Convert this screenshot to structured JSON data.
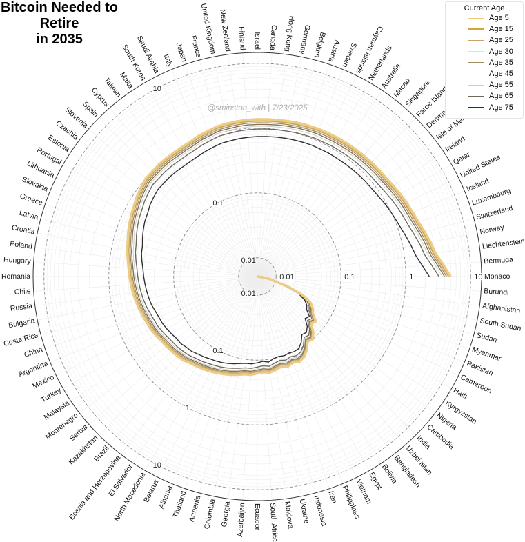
{
  "title": {
    "line1": "Bitcoin Needed to Retire",
    "line2": "in 2035"
  },
  "watermark": "@sminston_with  |  7/23/2025",
  "legend": {
    "title": "Current Age",
    "placement": "top-right",
    "items": [
      {
        "label": "Age 5",
        "color": "#eccb84"
      },
      {
        "label": "Age 15",
        "color": "#d6a43a"
      },
      {
        "label": "Age 25",
        "color": "#c9a45e"
      },
      {
        "label": "Age 30",
        "color": "#e6dfd0"
      },
      {
        "label": "Age 35",
        "color": "#a18d62"
      },
      {
        "label": "Age 45",
        "color": "#87724e"
      },
      {
        "label": "Age 55",
        "color": "#cfcfcf"
      },
      {
        "label": "Age 65",
        "color": "#6f675a"
      },
      {
        "label": "Age 75",
        "color": "#2e2e2e"
      }
    ]
  },
  "chart_data": {
    "type": "line",
    "coordinate_system": "polar",
    "title": "Bitcoin Needed to Retire in 2035",
    "radial_scale": "log",
    "radial_ticks": [
      0.01,
      0.1,
      1,
      10
    ],
    "radial_tick_labels": [
      "0.01",
      "0.1",
      "1",
      "10"
    ],
    "grid": true,
    "categories": [
      "Burundi",
      "Afghanistan",
      "South Sudan",
      "Sudan",
      "Myanmar",
      "Pakistan",
      "Cameroon",
      "Haiti",
      "Kyrgyzstan",
      "Nigeria",
      "Cambodia",
      "India",
      "Uzbekistan",
      "Bangladesh",
      "Bolivia",
      "Egypt",
      "Vietnam",
      "Philippines",
      "Iran",
      "Indonesia",
      "Ukraine",
      "Moldova",
      "South Africa",
      "Ecuador",
      "Azerbaijan",
      "Georgia",
      "Colombia",
      "Armenia",
      "Thailand",
      "Albania",
      "Belarus",
      "North Macedonia",
      "El Salvador",
      "Bosnia and Herzegovina",
      "Brazil",
      "Kazakhstan",
      "Serbia",
      "Montenegro",
      "Malaysia",
      "Turkey",
      "Mexico",
      "Argentina",
      "China",
      "Costa Rica",
      "Bulgaria",
      "Russia",
      "Chile",
      "Romania",
      "Hungary",
      "Poland",
      "Croatia",
      "Latvia",
      "Greece",
      "Slovakia",
      "Lithuania",
      "Portugal",
      "Estonia",
      "Czechia",
      "Slovenia",
      "Spain",
      "Cyprus",
      "Taiwan",
      "Malta",
      "South Korea",
      "Saudi Arabia",
      "Italy",
      "Japan",
      "France",
      "United Kingdom",
      "New Zealand",
      "Finland",
      "Israel",
      "Canada",
      "Hong Kong",
      "Germany",
      "Belgium",
      "Austria",
      "Sweden",
      "Cayman Islands",
      "Netherlands",
      "Australia",
      "Macao",
      "Singapore",
      "Faroe Islands",
      "Denmark",
      "Isle of Man",
      "Ireland",
      "Qatar",
      "United States",
      "Iceland",
      "Luxembourg",
      "Switzerland",
      "Norway",
      "Liechtenstein",
      "Bermuda",
      "Monaco"
    ],
    "series": [
      {
        "name": "Age 5",
        "values": [
          0.005,
          0.006,
          0.008,
          0.01,
          0.017,
          0.03,
          0.042,
          0.05,
          0.055,
          0.07,
          0.065,
          0.085,
          0.1,
          0.095,
          0.12,
          0.14,
          0.15,
          0.14,
          0.15,
          0.14,
          0.15,
          0.16,
          0.155,
          0.16,
          0.17,
          0.17,
          0.18,
          0.19,
          0.2,
          0.21,
          0.22,
          0.23,
          0.24,
          0.25,
          0.27,
          0.28,
          0.29,
          0.3,
          0.31,
          0.33,
          0.35,
          0.36,
          0.38,
          0.4,
          0.42,
          0.44,
          0.46,
          0.48,
          0.5,
          0.53,
          0.57,
          0.6,
          0.65,
          0.7,
          0.75,
          0.8,
          0.87,
          0.93,
          1.0,
          1.0,
          1.02,
          1.03,
          1.03,
          1.05,
          1.08,
          1.15,
          1.2,
          1.28,
          1.3,
          1.33,
          1.35,
          1.37,
          1.38,
          1.4,
          1.42,
          1.45,
          1.47,
          1.5,
          1.5,
          1.52,
          1.53,
          1.55,
          1.56,
          1.58,
          1.6,
          1.62,
          1.7,
          1.8,
          1.9,
          2.0,
          2.15,
          2.4,
          2.7,
          3.0,
          3.8,
          4.9
        ]
      },
      {
        "name": "Age 15",
        "values": [
          0.005,
          0.006,
          0.008,
          0.01,
          0.017,
          0.0298,
          0.0416,
          0.0495,
          0.0544,
          0.0692,
          0.0642,
          0.0839,
          0.0986,
          0.0937,
          0.118,
          0.138,
          0.148,
          0.138,
          0.148,
          0.138,
          0.148,
          0.158,
          0.153,
          0.158,
          0.167,
          0.167,
          0.177,
          0.187,
          0.197,
          0.206,
          0.216,
          0.226,
          0.236,
          0.246,
          0.265,
          0.275,
          0.285,
          0.295,
          0.305,
          0.324,
          0.344,
          0.353,
          0.373,
          0.393,
          0.412,
          0.432,
          0.451,
          0.471,
          0.49,
          0.52,
          0.559,
          0.588,
          0.637,
          0.686,
          0.735,
          0.783,
          0.852,
          0.91,
          0.978,
          0.978,
          0.998,
          1.01,
          1.01,
          1.03,
          1.06,
          1.12,
          1.17,
          1.25,
          1.27,
          1.3,
          1.32,
          1.34,
          1.35,
          1.37,
          1.39,
          1.42,
          1.44,
          1.47,
          1.47,
          1.48,
          1.49,
          1.51,
          1.52,
          1.54,
          1.56,
          1.58,
          1.66,
          1.76,
          1.85,
          1.95,
          2.1,
          2.34,
          2.63,
          2.93,
          3.7,
          4.77
        ]
      },
      {
        "name": "Age 25",
        "values": [
          0.005,
          0.006,
          0.008,
          0.0099,
          0.0168,
          0.0294,
          0.0409,
          0.0487,
          0.0534,
          0.068,
          0.0631,
          0.0824,
          0.0966,
          0.0919,
          0.116,
          0.135,
          0.144,
          0.135,
          0.144,
          0.135,
          0.144,
          0.154,
          0.149,
          0.154,
          0.163,
          0.163,
          0.173,
          0.182,
          0.192,
          0.202,
          0.211,
          0.22,
          0.23,
          0.24,
          0.259,
          0.268,
          0.278,
          0.287,
          0.297,
          0.316,
          0.334,
          0.344,
          0.363,
          0.382,
          0.401,
          0.42,
          0.438,
          0.457,
          0.476,
          0.505,
          0.542,
          0.57,
          0.618,
          0.665,
          0.713,
          0.759,
          0.826,
          0.882,
          0.947,
          0.947,
          0.966,
          0.975,
          0.975,
          0.994,
          1.02,
          1.09,
          1.14,
          1.21,
          1.23,
          1.26,
          1.28,
          1.29,
          1.3,
          1.32,
          1.34,
          1.37,
          1.39,
          1.42,
          1.42,
          1.43,
          1.44,
          1.46,
          1.47,
          1.49,
          1.51,
          1.53,
          1.6,
          1.7,
          1.79,
          1.88,
          2.03,
          2.26,
          2.54,
          2.82,
          3.56,
          4.59
        ]
      },
      {
        "name": "Age 30",
        "values": [
          0.005,
          0.006,
          0.008,
          0.0099,
          0.0166,
          0.0291,
          0.0404,
          0.048,
          0.0527,
          0.0669,
          0.0621,
          0.081,
          0.095,
          0.0903,
          0.114,
          0.132,
          0.141,
          0.132,
          0.141,
          0.132,
          0.141,
          0.151,
          0.146,
          0.151,
          0.16,
          0.16,
          0.169,
          0.179,
          0.188,
          0.197,
          0.207,
          0.216,
          0.225,
          0.235,
          0.253,
          0.262,
          0.272,
          0.28,
          0.29,
          0.308,
          0.327,
          0.336,
          0.354,
          0.373,
          0.391,
          0.409,
          0.428,
          0.446,
          0.464,
          0.492,
          0.529,
          0.555,
          0.601,
          0.648,
          0.694,
          0.739,
          0.803,
          0.858,
          0.921,
          0.921,
          0.939,
          0.947,
          0.947,
          0.965,
          0.994,
          1.06,
          1.1,
          1.17,
          1.19,
          1.22,
          1.24,
          1.26,
          1.27,
          1.28,
          1.3,
          1.33,
          1.35,
          1.37,
          1.37,
          1.39,
          1.4,
          1.42,
          1.43,
          1.45,
          1.47,
          1.48,
          1.55,
          1.65,
          1.74,
          1.83,
          1.96,
          2.19,
          2.46,
          2.73,
          3.44,
          4.43
        ]
      },
      {
        "name": "Age 35",
        "values": [
          0.005,
          0.006,
          0.008,
          0.0098,
          0.0165,
          0.0288,
          0.0398,
          0.0473,
          0.0518,
          0.0658,
          0.061,
          0.0795,
          0.093,
          0.0885,
          0.111,
          0.13,
          0.138,
          0.129,
          0.138,
          0.129,
          0.138,
          0.148,
          0.143,
          0.148,
          0.156,
          0.156,
          0.165,
          0.174,
          0.184,
          0.193,
          0.201,
          0.21,
          0.22,
          0.229,
          0.247,
          0.255,
          0.265,
          0.273,
          0.283,
          0.3,
          0.318,
          0.326,
          0.344,
          0.363,
          0.38,
          0.398,
          0.415,
          0.433,
          0.45,
          0.478,
          0.513,
          0.538,
          0.583,
          0.628,
          0.673,
          0.715,
          0.778,
          0.83,
          0.89,
          0.89,
          0.908,
          0.915,
          0.915,
          0.933,
          0.96,
          1.02,
          1.07,
          1.13,
          1.15,
          1.18,
          1.2,
          1.21,
          1.22,
          1.24,
          1.26,
          1.28,
          1.3,
          1.33,
          1.33,
          1.34,
          1.35,
          1.37,
          1.38,
          1.4,
          1.41,
          1.43,
          1.5,
          1.59,
          1.67,
          1.76,
          1.89,
          2.11,
          2.36,
          2.63,
          3.31,
          4.25
        ]
      },
      {
        "name": "Age 45",
        "values": [
          0.005,
          0.006,
          0.008,
          0.0097,
          0.0163,
          0.0282,
          0.0388,
          0.046,
          0.0503,
          0.0639,
          0.0592,
          0.0771,
          0.0899,
          0.0856,
          0.107,
          0.125,
          0.132,
          0.125,
          0.132,
          0.125,
          0.132,
          0.142,
          0.137,
          0.142,
          0.15,
          0.15,
          0.158,
          0.167,
          0.176,
          0.185,
          0.193,
          0.201,
          0.21,
          0.219,
          0.236,
          0.244,
          0.254,
          0.26,
          0.27,
          0.287,
          0.303,
          0.311,
          0.328,
          0.346,
          0.362,
          0.379,
          0.395,
          0.412,
          0.428,
          0.454,
          0.487,
          0.51,
          0.553,
          0.596,
          0.638,
          0.678,
          0.737,
          0.786,
          0.842,
          0.842,
          0.858,
          0.864,
          0.864,
          0.881,
          0.907,
          0.963,
          1.01,
          1.07,
          1.08,
          1.11,
          1.13,
          1.14,
          1.15,
          1.17,
          1.19,
          1.21,
          1.23,
          1.25,
          1.25,
          1.26,
          1.27,
          1.29,
          1.3,
          1.31,
          1.33,
          1.35,
          1.41,
          1.49,
          1.57,
          1.65,
          1.78,
          1.98,
          2.21,
          2.46,
          3.09,
          3.96
        ]
      },
      {
        "name": "Age 55",
        "values": [
          0.005,
          0.006,
          0.0078,
          0.0097,
          0.016,
          0.0276,
          0.0377,
          0.0447,
          0.0488,
          0.0618,
          0.0573,
          0.0744,
          0.0866,
          0.0825,
          0.103,
          0.12,
          0.126,
          0.119,
          0.126,
          0.119,
          0.126,
          0.136,
          0.131,
          0.136,
          0.144,
          0.144,
          0.151,
          0.16,
          0.168,
          0.176,
          0.184,
          0.192,
          0.201,
          0.209,
          0.225,
          0.232,
          0.242,
          0.247,
          0.257,
          0.272,
          0.288,
          0.295,
          0.31,
          0.328,
          0.343,
          0.358,
          0.374,
          0.389,
          0.404,
          0.429,
          0.46,
          0.48,
          0.52,
          0.561,
          0.601,
          0.637,
          0.692,
          0.738,
          0.789,
          0.789,
          0.804,
          0.809,
          0.809,
          0.824,
          0.85,
          0.9,
          0.941,
          1.0,
          1.01,
          1.04,
          1.05,
          1.07,
          1.08,
          1.09,
          1.11,
          1.13,
          1.14,
          1.16,
          1.16,
          1.18,
          1.18,
          1.2,
          1.21,
          1.22,
          1.24,
          1.26,
          1.31,
          1.39,
          1.46,
          1.54,
          1.65,
          1.83,
          2.05,
          2.28,
          2.85,
          3.65
        ]
      },
      {
        "name": "Age 65",
        "values": [
          0.005,
          0.006,
          0.0077,
          0.0096,
          0.0157,
          0.0268,
          0.0362,
          0.043,
          0.0467,
          0.0591,
          0.0548,
          0.0709,
          0.0821,
          0.0784,
          0.0976,
          0.113,
          0.118,
          0.112,
          0.118,
          0.112,
          0.118,
          0.128,
          0.123,
          0.128,
          0.135,
          0.135,
          0.142,
          0.15,
          0.158,
          0.165,
          0.172,
          0.179,
          0.188,
          0.196,
          0.21,
          0.216,
          0.226,
          0.23,
          0.24,
          0.253,
          0.267,
          0.274,
          0.287,
          0.304,
          0.318,
          0.331,
          0.345,
          0.358,
          0.372,
          0.396,
          0.423,
          0.44,
          0.477,
          0.514,
          0.552,
          0.582,
          0.633,
          0.674,
          0.718,
          0.718,
          0.732,
          0.736,
          0.736,
          0.749,
          0.773,
          0.817,
          0.854,
          0.902,
          0.916,
          0.94,
          0.953,
          0.967,
          0.977,
          0.99,
          1.0,
          1.02,
          1.03,
          1.05,
          1.05,
          1.07,
          1.07,
          1.08,
          1.09,
          1.11,
          1.12,
          1.13,
          1.18,
          1.25,
          1.32,
          1.39,
          1.48,
          1.64,
          1.84,
          2.04,
          2.53,
          3.24
        ]
      },
      {
        "name": "Age 75",
        "values": [
          0.005,
          0.0059,
          0.0076,
          0.0093,
          0.015,
          0.025,
          0.033,
          0.039,
          0.042,
          0.053,
          0.049,
          0.063,
          0.072,
          0.069,
          0.085,
          0.098,
          0.1,
          0.097,
          0.1,
          0.097,
          0.1,
          0.11,
          0.105,
          0.11,
          0.115,
          0.115,
          0.12,
          0.127,
          0.134,
          0.14,
          0.145,
          0.15,
          0.158,
          0.165,
          0.176,
          0.18,
          0.19,
          0.19,
          0.2,
          0.21,
          0.22,
          0.225,
          0.235,
          0.25,
          0.26,
          0.27,
          0.28,
          0.29,
          0.3,
          0.32,
          0.34,
          0.35,
          0.38,
          0.41,
          0.44,
          0.46,
          0.5,
          0.53,
          0.56,
          0.56,
          0.57,
          0.57,
          0.57,
          0.58,
          0.6,
          0.63,
          0.66,
          0.69,
          0.7,
          0.72,
          0.73,
          0.74,
          0.75,
          0.76,
          0.77,
          0.78,
          0.79,
          0.8,
          0.8,
          0.81,
          0.81,
          0.82,
          0.83,
          0.84,
          0.85,
          0.86,
          0.89,
          0.94,
          0.99,
          1.04,
          1.11,
          1.22,
          1.35,
          1.5,
          1.82,
          2.3
        ]
      }
    ]
  }
}
